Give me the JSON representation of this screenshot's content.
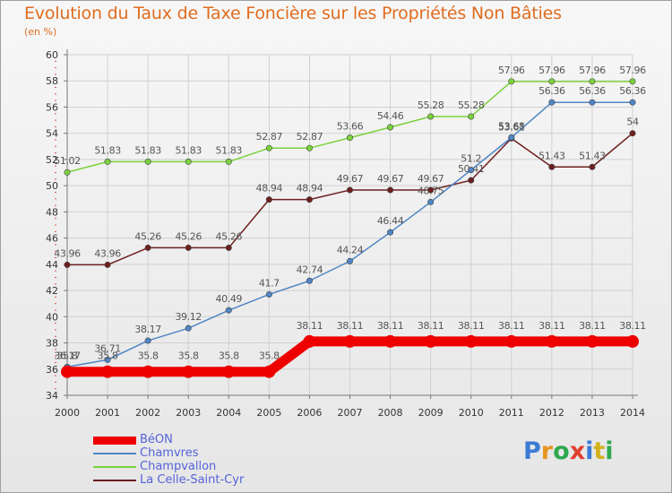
{
  "title": "Evolution du Taux de Taxe Foncière sur les Propriétés Non Bâties",
  "subtitle": "(en %)",
  "logo_text": "Proxiti",
  "logo_colors": [
    "#3a7bd5",
    "#e89420",
    "#2fa84f",
    "#e0412f",
    "#3a7bd5",
    "#d4b01e",
    "#2fa84f"
  ],
  "chart_data": {
    "type": "line",
    "title": "Evolution du Taux de Taxe Foncière sur les Propriétés Non Bâties",
    "ylabel": "(en %)",
    "xlabel": "",
    "x": [
      "2000",
      "2001",
      "2002",
      "2003",
      "2004",
      "2005",
      "2006",
      "2007",
      "2008",
      "2009",
      "2010",
      "2011",
      "2012",
      "2013",
      "2014"
    ],
    "ylim": [
      34,
      60
    ],
    "yticks": [
      34,
      36,
      38,
      40,
      42,
      44,
      46,
      48,
      50,
      52,
      54,
      56,
      58,
      60
    ],
    "grid": true,
    "legend_position": "bottom-left",
    "series": [
      {
        "name": "BéON",
        "color": "#ee0000",
        "values": [
          35.8,
          35.8,
          35.8,
          35.8,
          35.8,
          35.8,
          38.11,
          38.11,
          38.11,
          38.11,
          38.11,
          38.11,
          38.11,
          38.11,
          38.11
        ],
        "labels": [
          "35.8",
          "35.8",
          "35.8",
          "35.8",
          "35.8",
          "35.8",
          "38.11",
          "38.11",
          "38.11",
          "38.11",
          "38.11",
          "38.11",
          "38.11",
          "38.11",
          "38.11"
        ]
      },
      {
        "name": "Chamvres",
        "color": "#4f86c6",
        "values": [
          36.17,
          36.71,
          38.17,
          39.12,
          40.49,
          41.7,
          42.74,
          44.24,
          46.44,
          48.75,
          51.2,
          53.68,
          56.36,
          56.36,
          56.36
        ],
        "labels": [
          "36.17",
          "36.71",
          "38.17",
          "39.12",
          "40.49",
          "41.7",
          "42.74",
          "44.24",
          "46.44",
          "48.75",
          "51.2",
          "53.68",
          "56.36",
          "56.36",
          "56.36"
        ]
      },
      {
        "name": "Champvallon",
        "color": "#7bd23c",
        "values": [
          51.02,
          51.83,
          51.83,
          51.83,
          51.83,
          52.87,
          52.87,
          53.66,
          54.46,
          55.28,
          55.28,
          57.96,
          57.96,
          57.96,
          57.96
        ],
        "labels": [
          "51.02",
          "51.83",
          "51.83",
          "51.83",
          "51.83",
          "52.87",
          "52.87",
          "53.66",
          "54.46",
          "55.28",
          "55.28",
          "57.96",
          "57.96",
          "57.96",
          "57.96"
        ]
      },
      {
        "name": "La Celle-Saint-Cyr",
        "color": "#6e1f1f",
        "values": [
          43.96,
          43.96,
          45.26,
          45.26,
          45.26,
          48.94,
          48.94,
          49.67,
          49.67,
          49.67,
          50.41,
          53.61,
          51.43,
          51.43,
          54
        ],
        "labels": [
          "43.96",
          "43.96",
          "45.26",
          "45.26",
          "45.26",
          "48.94",
          "48.94",
          "49.67",
          "49.67",
          "49.67",
          "50.41",
          "53.61",
          "51.43",
          "51.43",
          "54"
        ]
      }
    ]
  }
}
